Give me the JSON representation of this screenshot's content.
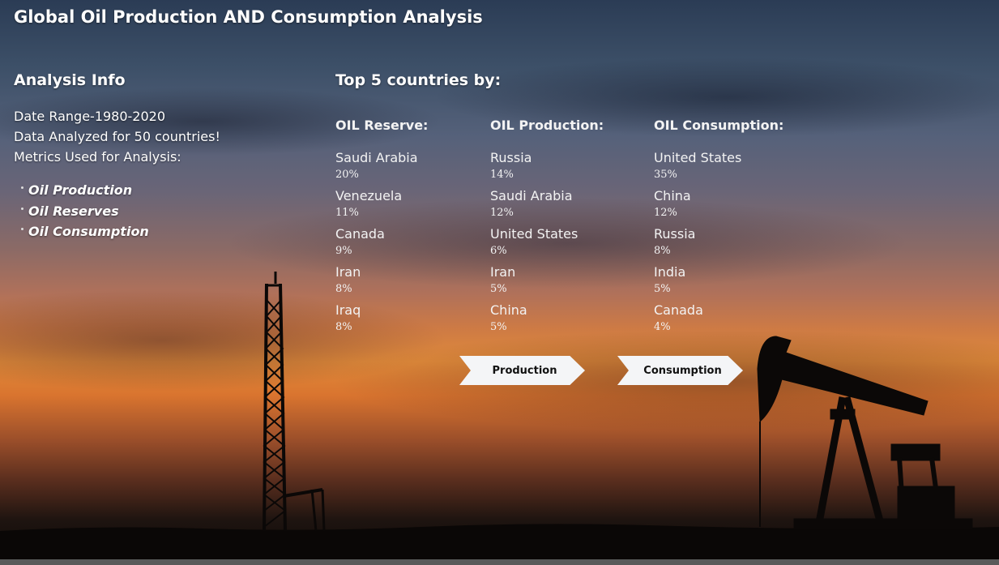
{
  "title": "Global Oil Production AND Consumption Analysis",
  "analysis_info": {
    "heading": "Analysis Info",
    "date_range": "Date Range-1980-2020",
    "countries": "Data Analyzed for 50 countries!",
    "metrics_label": "Metrics Used for Analysis:",
    "metrics": [
      "Oil Production",
      "Oil Reserves",
      "Oil Consumption"
    ]
  },
  "top5": {
    "heading": "Top 5 countries by:",
    "columns": [
      {
        "title": "OIL Reserve:",
        "items": [
          {
            "country": "Saudi Arabia",
            "pct": "20%"
          },
          {
            "country": "Venezuela",
            "pct": "11%"
          },
          {
            "country": "Canada",
            "pct": "9%"
          },
          {
            "country": "Iran",
            "pct": "8%"
          },
          {
            "country": "Iraq",
            "pct": "8%"
          }
        ]
      },
      {
        "title": "OIL Production:",
        "items": [
          {
            "country": "Russia",
            "pct": "14%"
          },
          {
            "country": "Saudi Arabia",
            "pct": "12%"
          },
          {
            "country": "United States",
            "pct": "6%"
          },
          {
            "country": "Iran",
            "pct": "5%"
          },
          {
            "country": "China",
            "pct": "5%"
          }
        ]
      },
      {
        "title": "OIL Consumption:",
        "items": [
          {
            "country": "United States",
            "pct": "35%"
          },
          {
            "country": "China",
            "pct": "12%"
          },
          {
            "country": "Russia",
            "pct": "8%"
          },
          {
            "country": "India",
            "pct": "5%"
          },
          {
            "country": "Canada",
            "pct": "4%"
          }
        ]
      }
    ]
  },
  "buttons": {
    "production": "Production",
    "consumption": "Consumption"
  }
}
